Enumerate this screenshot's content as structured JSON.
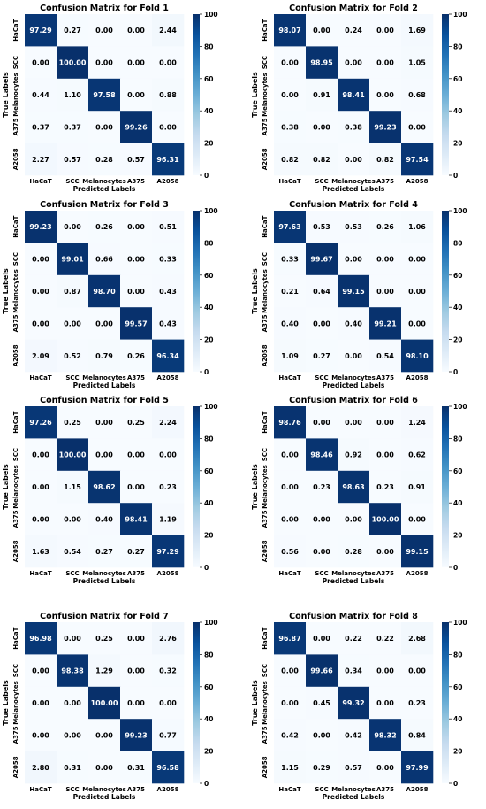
{
  "classes": [
    "HaCaT",
    "SCC",
    "Melanocytes",
    "A375",
    "A2058"
  ],
  "colorbar": {
    "ticks": [
      0,
      20,
      40,
      60,
      80,
      100
    ],
    "vmin": 0,
    "vmax": 100,
    "colormap": "Blues"
  },
  "colors": {
    "low": "#f7fbff",
    "high": "#08306b"
  },
  "chart_data": [
    {
      "type": "heatmap",
      "title": "Confusion Matrix for Fold 1",
      "xlabel": "Predicted Labels",
      "ylabel": "True Labels",
      "x": [
        "HaCaT",
        "SCC",
        "Melanocytes",
        "A375",
        "A2058"
      ],
      "y": [
        "HaCaT",
        "SCC",
        "Melanocytes",
        "A375",
        "A2058"
      ],
      "values": [
        [
          "97.29",
          "0.27",
          "0.00",
          "0.00",
          "2.44"
        ],
        [
          "0.00",
          "100.00",
          "0.00",
          "0.00",
          "0.00"
        ],
        [
          "0.44",
          "1.10",
          "97.58",
          "0.00",
          "0.88"
        ],
        [
          "0.37",
          "0.37",
          "0.00",
          "99.26",
          "0.00"
        ],
        [
          "2.27",
          "0.57",
          "0.28",
          "0.57",
          "96.31"
        ]
      ]
    },
    {
      "type": "heatmap",
      "title": "Confusion Matrix for Fold 2",
      "xlabel": "Predicted Labels",
      "ylabel": "True Labels",
      "x": [
        "HaCaT",
        "SCC",
        "Melanocytes",
        "A375",
        "A2058"
      ],
      "y": [
        "HaCaT",
        "SCC",
        "Melanocytes",
        "A375",
        "A2058"
      ],
      "values": [
        [
          "98.07",
          "0.00",
          "0.24",
          "0.00",
          "1.69"
        ],
        [
          "0.00",
          "98.95",
          "0.00",
          "0.00",
          "1.05"
        ],
        [
          "0.00",
          "0.91",
          "98.41",
          "0.00",
          "0.68"
        ],
        [
          "0.38",
          "0.00",
          "0.38",
          "99.23",
          "0.00"
        ],
        [
          "0.82",
          "0.82",
          "0.00",
          "0.82",
          "97.54"
        ]
      ]
    },
    {
      "type": "heatmap",
      "title": "Confusion Matrix for Fold 3",
      "xlabel": "Predicted Labels",
      "ylabel": "True Labels",
      "x": [
        "HaCaT",
        "SCC",
        "Melanocytes",
        "A375",
        "A2058"
      ],
      "y": [
        "HaCaT",
        "SCC",
        "Melanocytes",
        "A375",
        "A2058"
      ],
      "values": [
        [
          "99.23",
          "0.00",
          "0.26",
          "0.00",
          "0.51"
        ],
        [
          "0.00",
          "99.01",
          "0.66",
          "0.00",
          "0.33"
        ],
        [
          "0.00",
          "0.87",
          "98.70",
          "0.00",
          "0.43"
        ],
        [
          "0.00",
          "0.00",
          "0.00",
          "99.57",
          "0.43"
        ],
        [
          "2.09",
          "0.52",
          "0.79",
          "0.26",
          "96.34"
        ]
      ]
    },
    {
      "type": "heatmap",
      "title": "Confusion Matrix for Fold 4",
      "xlabel": "Predicted Labels",
      "ylabel": "True Labels",
      "x": [
        "HaCaT",
        "SCC",
        "Melanocytes",
        "A375",
        "A2058"
      ],
      "y": [
        "HaCaT",
        "SCC",
        "Melanocytes",
        "A375",
        "A2058"
      ],
      "values": [
        [
          "97.63",
          "0.53",
          "0.53",
          "0.26",
          "1.06"
        ],
        [
          "0.33",
          "99.67",
          "0.00",
          "0.00",
          "0.00"
        ],
        [
          "0.21",
          "0.64",
          "99.15",
          "0.00",
          "0.00"
        ],
        [
          "0.40",
          "0.00",
          "0.40",
          "99.21",
          "0.00"
        ],
        [
          "1.09",
          "0.27",
          "0.00",
          "0.54",
          "98.10"
        ]
      ]
    },
    {
      "type": "heatmap",
      "title": "Confusion Matrix for Fold 5",
      "xlabel": "Predicted Labels",
      "ylabel": "True Labels",
      "x": [
        "HaCaT",
        "SCC",
        "Melanocytes",
        "A375",
        "A2058"
      ],
      "y": [
        "HaCaT",
        "SCC",
        "Melanocytes",
        "A375",
        "A2058"
      ],
      "values": [
        [
          "97.26",
          "0.25",
          "0.00",
          "0.25",
          "2.24"
        ],
        [
          "0.00",
          "100.00",
          "0.00",
          "0.00",
          "0.00"
        ],
        [
          "0.00",
          "1.15",
          "98.62",
          "0.00",
          "0.23"
        ],
        [
          "0.00",
          "0.00",
          "0.40",
          "98.41",
          "1.19"
        ],
        [
          "1.63",
          "0.54",
          "0.27",
          "0.27",
          "97.29"
        ]
      ]
    },
    {
      "type": "heatmap",
      "title": "Confusion Matrix for Fold 6",
      "xlabel": "Predicted Labels",
      "ylabel": "True Labels",
      "x": [
        "HaCaT",
        "SCC",
        "Melanocytes",
        "A375",
        "A2058"
      ],
      "y": [
        "HaCaT",
        "SCC",
        "Melanocytes",
        "A375",
        "A2058"
      ],
      "values": [
        [
          "98.76",
          "0.00",
          "0.00",
          "0.00",
          "1.24"
        ],
        [
          "0.00",
          "98.46",
          "0.92",
          "0.00",
          "0.62"
        ],
        [
          "0.00",
          "0.23",
          "98.63",
          "0.23",
          "0.91"
        ],
        [
          "0.00",
          "0.00",
          "0.00",
          "100.00",
          "0.00"
        ],
        [
          "0.56",
          "0.00",
          "0.28",
          "0.00",
          "99.15"
        ]
      ]
    },
    {
      "type": "heatmap",
      "title": "Confusion Matrix for Fold 7",
      "xlabel": "Predicted Labels",
      "ylabel": "True Labels",
      "x": [
        "HaCaT",
        "SCC",
        "Melanocytes",
        "A375",
        "A2058"
      ],
      "y": [
        "HaCaT",
        "SCC",
        "Melanocytes",
        "A375",
        "A2058"
      ],
      "values": [
        [
          "96.98",
          "0.00",
          "0.25",
          "0.00",
          "2.76"
        ],
        [
          "0.00",
          "98.38",
          "1.29",
          "0.00",
          "0.32"
        ],
        [
          "0.00",
          "0.00",
          "100.00",
          "0.00",
          "0.00"
        ],
        [
          "0.00",
          "0.00",
          "0.00",
          "99.23",
          "0.77"
        ],
        [
          "2.80",
          "0.31",
          "0.00",
          "0.31",
          "96.58"
        ]
      ]
    },
    {
      "type": "heatmap",
      "title": "Confusion Matrix for Fold 8",
      "xlabel": "Predicted Labels",
      "ylabel": "True Labels",
      "x": [
        "HaCaT",
        "SCC",
        "Melanocytes",
        "A375",
        "A2058"
      ],
      "y": [
        "HaCaT",
        "SCC",
        "Melanocytes",
        "A375",
        "A2058"
      ],
      "values": [
        [
          "96.87",
          "0.00",
          "0.22",
          "0.22",
          "2.68"
        ],
        [
          "0.00",
          "99.66",
          "0.34",
          "0.00",
          "0.00"
        ],
        [
          "0.00",
          "0.45",
          "99.32",
          "0.00",
          "0.23"
        ],
        [
          "0.42",
          "0.00",
          "0.42",
          "98.32",
          "0.84"
        ],
        [
          "1.15",
          "0.29",
          "0.57",
          "0.00",
          "97.99"
        ]
      ]
    }
  ]
}
